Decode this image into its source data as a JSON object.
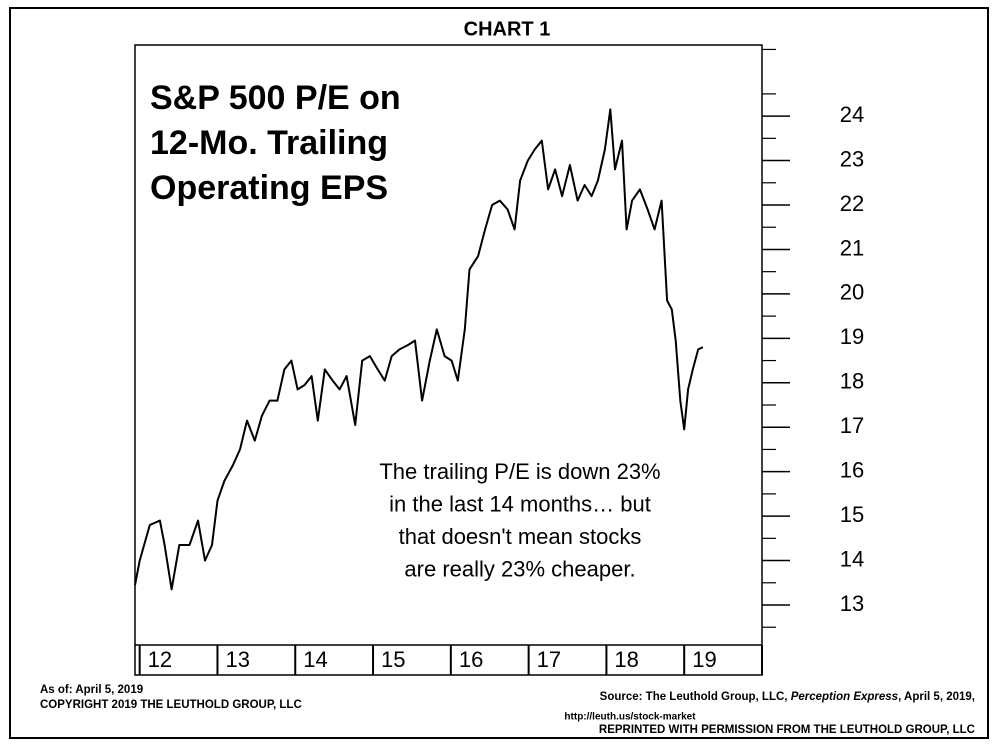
{
  "header": "CHART 1",
  "chart_data": {
    "type": "line",
    "title": [
      "S&P 500 P/E on",
      "12-Mo. Trailing",
      "Operating EPS"
    ],
    "annotation": [
      "The trailing P/E is down  23%",
      "in the last 14 months… but",
      "that doesn't mean stocks",
      "are really 23% cheaper."
    ],
    "x": [
      2011.94,
      2012.0,
      2012.13,
      2012.26,
      2012.32,
      2012.41,
      2012.51,
      2012.64,
      2012.75,
      2012.84,
      2012.93,
      2013.0,
      2013.09,
      2013.2,
      2013.29,
      2013.38,
      2013.48,
      2013.57,
      2013.67,
      2013.77,
      2013.86,
      2013.95,
      2014.03,
      2014.12,
      2014.21,
      2014.29,
      2014.38,
      2014.48,
      2014.57,
      2014.66,
      2014.77,
      2014.86,
      2014.96,
      2015.06,
      2015.15,
      2015.24,
      2015.34,
      2015.45,
      2015.54,
      2015.63,
      2015.73,
      2015.82,
      2015.92,
      2016.01,
      2016.09,
      2016.18,
      2016.24,
      2016.35,
      2016.44,
      2016.53,
      2016.63,
      2016.73,
      2016.82,
      2016.89,
      2016.99,
      2017.08,
      2017.17,
      2017.25,
      2017.34,
      2017.43,
      2017.53,
      2017.63,
      2017.72,
      2017.81,
      2017.89,
      2017.98,
      2018.05,
      2018.11,
      2018.2,
      2018.26,
      2018.33,
      2018.43,
      2018.53,
      2018.62,
      2018.71,
      2018.78,
      2018.84,
      2018.89,
      2018.95,
      2019.0,
      2019.05,
      2019.11,
      2019.18,
      2019.24
    ],
    "series": [
      {
        "color": "#000000",
        "values": [
          13.45,
          14.0,
          14.8,
          14.9,
          14.35,
          13.35,
          14.35,
          14.35,
          14.9,
          14.0,
          14.35,
          15.35,
          15.8,
          16.15,
          16.5,
          17.15,
          16.7,
          17.25,
          17.6,
          17.6,
          18.3,
          18.5,
          17.85,
          17.95,
          18.15,
          17.15,
          18.3,
          18.05,
          17.85,
          18.15,
          17.05,
          18.5,
          18.6,
          18.3,
          18.05,
          18.6,
          18.75,
          18.85,
          18.95,
          17.6,
          18.5,
          19.2,
          18.6,
          18.5,
          18.05,
          19.2,
          20.55,
          20.85,
          21.45,
          22.0,
          22.1,
          21.9,
          21.45,
          22.55,
          23.0,
          23.25,
          23.45,
          22.35,
          22.8,
          22.2,
          22.9,
          22.1,
          22.45,
          22.2,
          22.55,
          23.25,
          24.15,
          22.8,
          23.45,
          21.45,
          22.1,
          22.35,
          21.9,
          21.45,
          22.1,
          19.85,
          19.65,
          18.95,
          17.6,
          16.95,
          17.85,
          18.3,
          18.75,
          18.8
        ]
      }
    ],
    "xlim": [
      2011.94,
      2020.0
    ],
    "xticks": [
      {
        "value": 2012,
        "label": "12"
      },
      {
        "value": 2013,
        "label": "13"
      },
      {
        "value": 2014,
        "label": "14"
      },
      {
        "value": 2015,
        "label": "15"
      },
      {
        "value": 2016,
        "label": "16"
      },
      {
        "value": 2017,
        "label": "17"
      },
      {
        "value": 2018,
        "label": "18"
      },
      {
        "value": 2019,
        "label": "19"
      },
      {
        "value": 2020,
        "label": ""
      }
    ],
    "ylim": [
      12.1,
      25.6
    ],
    "yticks": [
      13,
      14,
      15,
      16,
      17,
      18,
      19,
      20,
      21,
      22,
      23,
      24
    ]
  },
  "footer": {
    "as_of": "As of: April 5, 2019",
    "copyright": "COPYRIGHT 2019 THE LEUTHOLD GROUP, LLC",
    "source": [
      "Source: The Leuthold Group, LLC, ",
      "Perception Express",
      ", April 5, 2019,"
    ],
    "url": "http://leuth.us/stock-market",
    "reprinted": "REPRINTED WITH PERMISSION FROM THE LEUTHOLD GROUP, LLC"
  }
}
